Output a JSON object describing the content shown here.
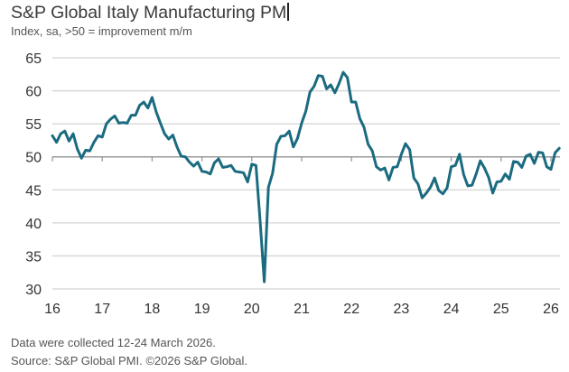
{
  "chart_data": {
    "type": "line",
    "title": "S&P Global Italy Manufacturing PM",
    "subtitle": "Index, sa, >50 = improvement m/m",
    "xlabel": "",
    "ylabel": "",
    "ylim": [
      30,
      65
    ],
    "yticks": [
      "30",
      "35",
      "40",
      "45",
      "50",
      "55",
      "60",
      "65"
    ],
    "xticks": [
      "16",
      "17",
      "18",
      "19",
      "20",
      "21",
      "22",
      "23",
      "24",
      "25",
      "26"
    ],
    "grid": true,
    "line_color": "#1b6b80",
    "x": [
      "2016-01",
      "2016-02",
      "2016-03",
      "2016-04",
      "2016-05",
      "2016-06",
      "2016-07",
      "2016-08",
      "2016-09",
      "2016-10",
      "2016-11",
      "2016-12",
      "2017-01",
      "2017-02",
      "2017-03",
      "2017-04",
      "2017-05",
      "2017-06",
      "2017-07",
      "2017-08",
      "2017-09",
      "2017-10",
      "2017-11",
      "2017-12",
      "2018-01",
      "2018-02",
      "2018-03",
      "2018-04",
      "2018-05",
      "2018-06",
      "2018-07",
      "2018-08",
      "2018-09",
      "2018-10",
      "2018-11",
      "2018-12",
      "2019-01",
      "2019-02",
      "2019-03",
      "2019-04",
      "2019-05",
      "2019-06",
      "2019-07",
      "2019-08",
      "2019-09",
      "2019-10",
      "2019-11",
      "2019-12",
      "2020-01",
      "2020-02",
      "2020-03",
      "2020-04",
      "2020-05",
      "2020-06",
      "2020-07",
      "2020-08",
      "2020-09",
      "2020-10",
      "2020-11",
      "2020-12",
      "2021-01",
      "2021-02",
      "2021-03",
      "2021-04",
      "2021-05",
      "2021-06",
      "2021-07",
      "2021-08",
      "2021-09",
      "2021-10",
      "2021-11",
      "2021-12",
      "2022-01",
      "2022-02",
      "2022-03",
      "2022-04",
      "2022-05",
      "2022-06",
      "2022-07",
      "2022-08",
      "2022-09",
      "2022-10",
      "2022-11",
      "2022-12",
      "2023-01",
      "2023-02",
      "2023-03",
      "2023-04",
      "2023-05",
      "2023-06",
      "2023-07",
      "2023-08",
      "2023-09",
      "2023-10",
      "2023-11",
      "2023-12",
      "2024-01",
      "2024-02",
      "2024-03",
      "2024-04",
      "2024-05",
      "2024-06",
      "2024-07",
      "2024-08",
      "2024-09",
      "2024-10",
      "2024-11",
      "2024-12",
      "2025-01",
      "2025-02",
      "2025-03",
      "2025-04",
      "2025-05",
      "2025-06",
      "2025-07",
      "2025-08",
      "2025-09",
      "2025-10",
      "2025-11",
      "2025-12",
      "2026-01",
      "2026-02",
      "2026-03"
    ],
    "values": [
      53.2,
      52.2,
      53.5,
      53.9,
      52.4,
      53.5,
      51.2,
      49.8,
      51.0,
      50.9,
      52.2,
      53.2,
      53.0,
      55.0,
      55.7,
      56.2,
      55.1,
      55.2,
      55.1,
      56.3,
      56.3,
      57.8,
      58.3,
      57.4,
      59.0,
      56.8,
      55.1,
      53.5,
      52.7,
      53.3,
      51.5,
      50.1,
      50.0,
      49.2,
      48.6,
      49.2,
      47.8,
      47.7,
      47.4,
      49.1,
      49.7,
      48.4,
      48.5,
      48.7,
      47.8,
      47.7,
      47.6,
      46.2,
      48.9,
      48.7,
      40.3,
      31.1,
      45.4,
      47.5,
      51.9,
      53.1,
      53.2,
      53.9,
      51.5,
      52.8,
      55.1,
      56.9,
      59.8,
      60.7,
      62.3,
      62.2,
      60.3,
      60.9,
      59.7,
      61.1,
      62.8,
      62.0,
      58.3,
      58.3,
      55.8,
      54.5,
      51.9,
      50.9,
      48.5,
      48.0,
      48.3,
      46.5,
      48.4,
      48.5,
      50.4,
      52.0,
      51.1,
      46.8,
      45.9,
      43.8,
      44.5,
      45.4,
      46.8,
      44.9,
      44.4,
      45.3,
      48.5,
      48.7,
      50.4,
      47.3,
      45.6,
      45.7,
      47.4,
      49.4,
      48.3,
      46.9,
      44.5,
      46.2,
      46.3,
      47.4,
      46.6,
      49.3,
      49.2,
      48.4,
      50.1,
      50.4,
      49.0,
      50.7,
      50.6,
      48.5,
      48.1,
      50.6,
      51.3
    ]
  },
  "notes": {
    "collection": "Data were collected 12-24 March 2026.",
    "source": "Source: S&P Global PMI. ©2026 S&P Global."
  }
}
